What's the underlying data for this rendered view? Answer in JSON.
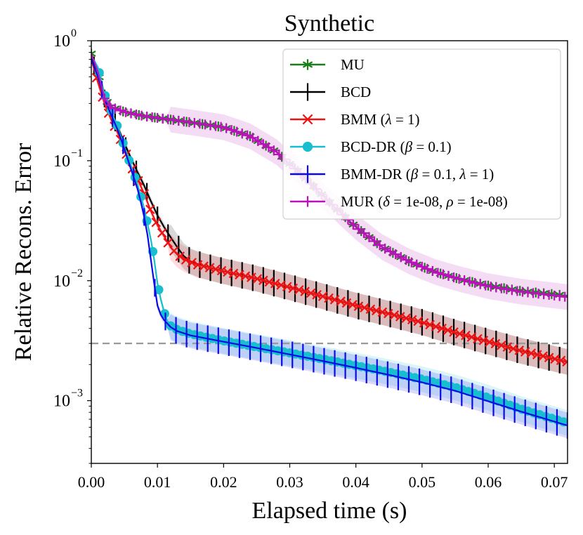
{
  "chart_data": {
    "type": "line",
    "title": "Synthetic",
    "xlabel": "Elapsed time (s)",
    "ylabel": "Relative Recons. Error",
    "yscale": "log",
    "xlim": [
      0,
      0.072
    ],
    "ylim": [
      0.0003,
      1.0
    ],
    "x_ticks": [
      0,
      0.01,
      0.02,
      0.03,
      0.04,
      0.05,
      0.06,
      0.07
    ],
    "x_tick_labels": [
      "0.00",
      "0.01",
      "0.02",
      "0.03",
      "0.04",
      "0.05",
      "0.06",
      "0.07"
    ],
    "y_ticks": [
      1,
      0.1,
      0.01,
      0.001
    ],
    "y_tick_labels": [
      {
        "base": "10",
        "exp": "0"
      },
      {
        "base": "10",
        "exp": "−1"
      },
      {
        "base": "10",
        "exp": "−2"
      },
      {
        "base": "10",
        "exp": "−3"
      }
    ],
    "reference_line": {
      "y": 0.003,
      "style": "dashed",
      "color": "#999999"
    },
    "legend_position": "top-right",
    "series": [
      {
        "name": "MU",
        "legend_html": "MU",
        "color": "#1a7f1a",
        "marker": "star",
        "band": false,
        "points": [
          [
            0,
            0.78
          ],
          [
            0.001,
            0.55
          ],
          [
            0.002,
            0.33
          ],
          [
            0.003,
            0.28
          ],
          [
            0.005,
            0.255
          ],
          [
            0.008,
            0.235
          ],
          [
            0.012,
            0.22
          ],
          [
            0.016,
            0.205
          ],
          [
            0.02,
            0.19
          ],
          [
            0.024,
            0.16
          ],
          [
            0.028,
            0.118
          ],
          [
            0.032,
            0.075
          ],
          [
            0.036,
            0.045
          ],
          [
            0.04,
            0.028
          ],
          [
            0.044,
            0.019
          ],
          [
            0.048,
            0.0145
          ],
          [
            0.052,
            0.0118
          ],
          [
            0.056,
            0.0102
          ],
          [
            0.06,
            0.0091
          ],
          [
            0.065,
            0.0082
          ],
          [
            0.072,
            0.0075
          ]
        ]
      },
      {
        "name": "BCD",
        "legend_html": "BCD",
        "color": "#000000",
        "marker": "vline",
        "band": true,
        "points": [
          [
            0,
            0.72
          ],
          [
            0.001,
            0.5
          ],
          [
            0.002,
            0.33
          ],
          [
            0.003,
            0.24
          ],
          [
            0.004,
            0.19
          ],
          [
            0.005,
            0.14
          ],
          [
            0.006,
            0.105
          ],
          [
            0.007,
            0.08
          ],
          [
            0.008,
            0.062
          ],
          [
            0.009,
            0.046
          ],
          [
            0.01,
            0.035
          ],
          [
            0.011,
            0.028
          ],
          [
            0.012,
            0.023
          ],
          [
            0.013,
            0.019
          ],
          [
            0.014,
            0.016
          ],
          [
            0.015,
            0.0145
          ],
          [
            0.016,
            0.0138
          ],
          [
            0.018,
            0.0128
          ],
          [
            0.02,
            0.012
          ],
          [
            0.025,
            0.0104
          ],
          [
            0.03,
            0.0088
          ],
          [
            0.035,
            0.0074
          ],
          [
            0.04,
            0.0062
          ],
          [
            0.045,
            0.0053
          ],
          [
            0.05,
            0.0045
          ],
          [
            0.055,
            0.0037
          ],
          [
            0.06,
            0.0031
          ],
          [
            0.065,
            0.0026
          ],
          [
            0.072,
            0.0021
          ]
        ]
      },
      {
        "name": "BMM (λ = 1)",
        "legend_html": "BMM (<tspan font-style=\"italic\">λ</tspan> = 1)",
        "color": "#ee1111",
        "marker": "x",
        "band": true,
        "points": [
          [
            0,
            0.7
          ],
          [
            0.001,
            0.45
          ],
          [
            0.002,
            0.3
          ],
          [
            0.003,
            0.22
          ],
          [
            0.004,
            0.17
          ],
          [
            0.005,
            0.125
          ],
          [
            0.006,
            0.09
          ],
          [
            0.007,
            0.07
          ],
          [
            0.008,
            0.053
          ],
          [
            0.009,
            0.038
          ],
          [
            0.01,
            0.029
          ],
          [
            0.011,
            0.0235
          ],
          [
            0.012,
            0.019
          ],
          [
            0.013,
            0.0165
          ],
          [
            0.014,
            0.0152
          ],
          [
            0.015,
            0.0143
          ],
          [
            0.016,
            0.0136
          ],
          [
            0.018,
            0.0128
          ],
          [
            0.02,
            0.012
          ],
          [
            0.025,
            0.0104
          ],
          [
            0.03,
            0.0088
          ],
          [
            0.035,
            0.0074
          ],
          [
            0.04,
            0.0062
          ],
          [
            0.045,
            0.0053
          ],
          [
            0.05,
            0.0045
          ],
          [
            0.055,
            0.0037
          ],
          [
            0.06,
            0.0031
          ],
          [
            0.065,
            0.0026
          ],
          [
            0.072,
            0.0021
          ]
        ]
      },
      {
        "name": "BCD-DR (β = 0.1)",
        "legend_html": "BCD-DR (<tspan font-style=\"italic\">β</tspan> = 0.1)",
        "color": "#17becf",
        "marker": "circle",
        "band": true,
        "points": [
          [
            0,
            0.75
          ],
          [
            0.001,
            0.6
          ],
          [
            0.002,
            0.36
          ],
          [
            0.003,
            0.26
          ],
          [
            0.004,
            0.19
          ],
          [
            0.005,
            0.13
          ],
          [
            0.006,
            0.09
          ],
          [
            0.007,
            0.063
          ],
          [
            0.0075,
            0.05
          ],
          [
            0.008,
            0.04
          ],
          [
            0.009,
            0.022
          ],
          [
            0.0095,
            0.015
          ],
          [
            0.01,
            0.0095
          ],
          [
            0.0105,
            0.007
          ],
          [
            0.011,
            0.0055
          ],
          [
            0.0115,
            0.0046
          ],
          [
            0.012,
            0.0042
          ],
          [
            0.013,
            0.0039
          ],
          [
            0.015,
            0.0036
          ],
          [
            0.02,
            0.00315
          ],
          [
            0.025,
            0.0028
          ],
          [
            0.03,
            0.0025
          ],
          [
            0.035,
            0.00222
          ],
          [
            0.04,
            0.00196
          ],
          [
            0.045,
            0.00173
          ],
          [
            0.05,
            0.00151
          ],
          [
            0.055,
            0.00129
          ],
          [
            0.06,
            0.00106
          ],
          [
            0.065,
            0.00085
          ],
          [
            0.072,
            0.00065
          ]
        ]
      },
      {
        "name": "BMM-DR (β = 0.1, λ = 1)",
        "legend_html": "BMM-DR (<tspan font-style=\"italic\">β</tspan> = 0.1, <tspan font-style=\"italic\">λ</tspan> = 1)",
        "color": "#0a0ae6",
        "marker": "vline",
        "band": true,
        "points": [
          [
            0,
            0.7
          ],
          [
            0.001,
            0.5
          ],
          [
            0.002,
            0.33
          ],
          [
            0.003,
            0.24
          ],
          [
            0.004,
            0.18
          ],
          [
            0.005,
            0.125
          ],
          [
            0.006,
            0.085
          ],
          [
            0.007,
            0.058
          ],
          [
            0.0075,
            0.045
          ],
          [
            0.008,
            0.034
          ],
          [
            0.0085,
            0.024
          ],
          [
            0.009,
            0.015
          ],
          [
            0.0095,
            0.0095
          ],
          [
            0.01,
            0.0062
          ],
          [
            0.0105,
            0.0052
          ],
          [
            0.011,
            0.0047
          ],
          [
            0.012,
            0.0041
          ],
          [
            0.013,
            0.0038
          ],
          [
            0.015,
            0.0035
          ],
          [
            0.02,
            0.0031
          ],
          [
            0.025,
            0.00275
          ],
          [
            0.03,
            0.00243
          ],
          [
            0.035,
            0.00214
          ],
          [
            0.04,
            0.00188
          ],
          [
            0.045,
            0.00164
          ],
          [
            0.05,
            0.00142
          ],
          [
            0.055,
            0.00121
          ],
          [
            0.06,
            0.00099
          ],
          [
            0.065,
            0.00081
          ],
          [
            0.072,
            0.00062
          ]
        ]
      },
      {
        "name": "MUR (δ = 1e-08, ρ = 1e-08)",
        "legend_html": "MUR (<tspan font-style=\"italic\">δ</tspan> = 1e-08, <tspan font-style=\"italic\">ρ</tspan> = 1e-08)",
        "color": "#bb11bb",
        "marker": "plus",
        "band": true,
        "points": [
          [
            0,
            0.78
          ],
          [
            0.001,
            0.55
          ],
          [
            0.002,
            0.33
          ],
          [
            0.003,
            0.28
          ],
          [
            0.005,
            0.255
          ],
          [
            0.008,
            0.235
          ],
          [
            0.012,
            0.22
          ],
          [
            0.016,
            0.205
          ],
          [
            0.02,
            0.19
          ],
          [
            0.024,
            0.16
          ],
          [
            0.028,
            0.118
          ],
          [
            0.032,
            0.075
          ],
          [
            0.036,
            0.045
          ],
          [
            0.04,
            0.028
          ],
          [
            0.044,
            0.019
          ],
          [
            0.048,
            0.0145
          ],
          [
            0.052,
            0.0118
          ],
          [
            0.056,
            0.0102
          ],
          [
            0.06,
            0.009
          ],
          [
            0.065,
            0.0081
          ],
          [
            0.072,
            0.0073
          ]
        ]
      }
    ]
  }
}
